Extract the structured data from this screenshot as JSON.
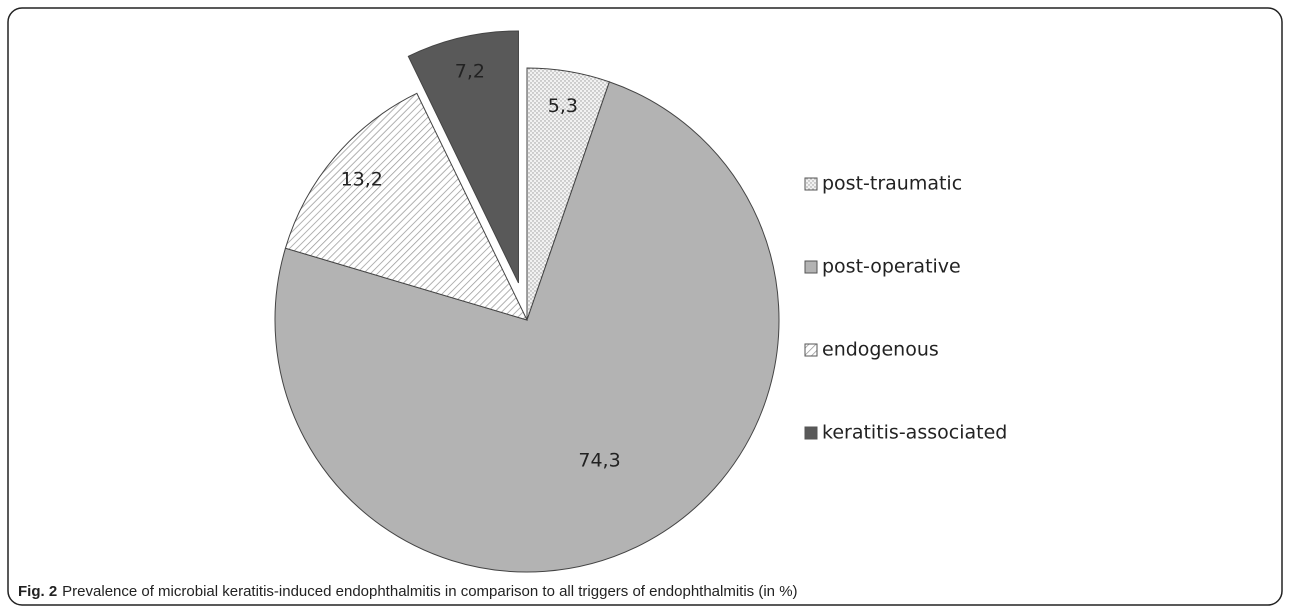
{
  "chart_data": {
    "type": "pie",
    "categories": [
      "post-traumatic",
      "post-operative",
      "endogenous",
      "keratitis-associated"
    ],
    "values": [
      5.3,
      74.3,
      13.2,
      7.2
    ],
    "value_labels": [
      "5,3",
      "74,3",
      "13,2",
      "7,2"
    ],
    "colors": [
      "#e6e6e6",
      "#b3b3b3",
      "#ffffff",
      "#595959"
    ],
    "patterns": [
      "dots",
      "solid",
      "hatch",
      "solid"
    ],
    "explode": [
      false,
      false,
      false,
      true
    ],
    "legend": "right"
  },
  "caption_label": "Fig. 2",
  "caption": "Prevalence of microbial keratitis-induced endophthalmitis in comparison to all triggers of endophthalmitis (in %)"
}
